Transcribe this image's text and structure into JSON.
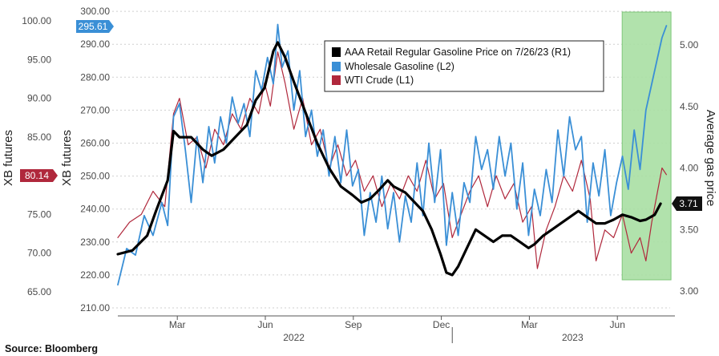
{
  "chart_data": {
    "type": "line",
    "source": "Source: Bloomberg",
    "x_ticks": [
      "Mar",
      "Jun",
      "Sep",
      "Dec",
      "Mar",
      "Jun"
    ],
    "x_years": [
      "2022",
      "2023"
    ],
    "axes": {
      "left_outer": {
        "label": "XB futures",
        "ticks": [
          "65.00",
          "70.00",
          "75.00",
          "80.00",
          "85.00",
          "90.00",
          "95.00",
          "100.00"
        ],
        "range": [
          65,
          100
        ]
      },
      "left_inner": {
        "label": "XB futures",
        "ticks": [
          "210.00",
          "220.00",
          "230.00",
          "240.00",
          "250.00",
          "260.00",
          "270.00",
          "280.00",
          "290.00",
          "300.00"
        ],
        "range": [
          210,
          300
        ]
      },
      "right": {
        "label": "Average gas price",
        "ticks": [
          "3.00",
          "3.50",
          "4.00",
          "4.50",
          "5.00"
        ],
        "range": [
          3.0,
          5.2
        ]
      }
    },
    "badges": {
      "wholesale": "295.61",
      "wti": "80.14",
      "retail": "3.71"
    },
    "highlight": {
      "from_month": 17.0,
      "to_month": 18.5,
      "color": "#a8dfa3"
    },
    "colors": {
      "retail": "#000000",
      "wholesale": "#3a8fd6",
      "wti": "#b0283c",
      "badge_wholesale": "#3a8fd6",
      "badge_wti": "#b0283c",
      "badge_retail": "#111111"
    },
    "series": [
      {
        "name": "AAA Retail Regular Gasoline Price on 7/26/23 (R1)",
        "axis": "right",
        "points": [
          [
            0.0,
            3.3
          ],
          [
            0.5,
            3.33
          ],
          [
            1.0,
            3.45
          ],
          [
            1.3,
            3.65
          ],
          [
            1.7,
            3.9
          ],
          [
            1.9,
            4.3
          ],
          [
            2.1,
            4.25
          ],
          [
            2.5,
            4.25
          ],
          [
            2.9,
            4.15
          ],
          [
            3.2,
            4.1
          ],
          [
            3.6,
            4.15
          ],
          [
            4.0,
            4.25
          ],
          [
            4.4,
            4.35
          ],
          [
            4.7,
            4.55
          ],
          [
            5.0,
            4.65
          ],
          [
            5.3,
            4.95
          ],
          [
            5.45,
            5.02
          ],
          [
            5.7,
            4.9
          ],
          [
            6.0,
            4.7
          ],
          [
            6.4,
            4.45
          ],
          [
            6.8,
            4.2
          ],
          [
            7.2,
            4.0
          ],
          [
            7.6,
            3.85
          ],
          [
            8.0,
            3.78
          ],
          [
            8.3,
            3.72
          ],
          [
            8.6,
            3.75
          ],
          [
            8.9,
            3.82
          ],
          [
            9.2,
            3.9
          ],
          [
            9.4,
            3.85
          ],
          [
            9.8,
            3.8
          ],
          [
            10.0,
            3.75
          ],
          [
            10.4,
            3.65
          ],
          [
            10.7,
            3.5
          ],
          [
            11.0,
            3.3
          ],
          [
            11.2,
            3.15
          ],
          [
            11.4,
            3.13
          ],
          [
            11.6,
            3.2
          ],
          [
            11.9,
            3.35
          ],
          [
            12.2,
            3.5
          ],
          [
            12.5,
            3.45
          ],
          [
            12.8,
            3.4
          ],
          [
            13.1,
            3.45
          ],
          [
            13.4,
            3.45
          ],
          [
            13.7,
            3.4
          ],
          [
            14.0,
            3.35
          ],
          [
            14.2,
            3.38
          ],
          [
            14.5,
            3.45
          ],
          [
            14.8,
            3.5
          ],
          [
            15.1,
            3.55
          ],
          [
            15.4,
            3.6
          ],
          [
            15.7,
            3.65
          ],
          [
            16.0,
            3.6
          ],
          [
            16.3,
            3.55
          ],
          [
            16.6,
            3.55
          ],
          [
            16.9,
            3.58
          ],
          [
            17.2,
            3.62
          ],
          [
            17.5,
            3.6
          ],
          [
            17.8,
            3.57
          ],
          [
            18.0,
            3.58
          ],
          [
            18.3,
            3.62
          ],
          [
            18.5,
            3.71
          ]
        ]
      },
      {
        "name": "Wholesale Gasoline (L2)",
        "axis": "left_inner",
        "points": [
          [
            0.0,
            217
          ],
          [
            0.3,
            228
          ],
          [
            0.6,
            226
          ],
          [
            0.9,
            238
          ],
          [
            1.2,
            232
          ],
          [
            1.5,
            242
          ],
          [
            1.7,
            235
          ],
          [
            1.9,
            268
          ],
          [
            2.1,
            272
          ],
          [
            2.3,
            258
          ],
          [
            2.5,
            242
          ],
          [
            2.7,
            262
          ],
          [
            2.9,
            248
          ],
          [
            3.1,
            265
          ],
          [
            3.3,
            254
          ],
          [
            3.5,
            268
          ],
          [
            3.7,
            260
          ],
          [
            3.9,
            274
          ],
          [
            4.1,
            266
          ],
          [
            4.3,
            272
          ],
          [
            4.5,
            262
          ],
          [
            4.7,
            282
          ],
          [
            4.9,
            276
          ],
          [
            5.1,
            286
          ],
          [
            5.3,
            278
          ],
          [
            5.45,
            296
          ],
          [
            5.6,
            283
          ],
          [
            5.8,
            288
          ],
          [
            6.0,
            270
          ],
          [
            6.2,
            282
          ],
          [
            6.4,
            262
          ],
          [
            6.6,
            270
          ],
          [
            6.8,
            256
          ],
          [
            7.0,
            264
          ],
          [
            7.2,
            250
          ],
          [
            7.4,
            262
          ],
          [
            7.6,
            248
          ],
          [
            7.8,
            264
          ],
          [
            8.0,
            247
          ],
          [
            8.2,
            252
          ],
          [
            8.4,
            232
          ],
          [
            8.6,
            245
          ],
          [
            8.8,
            236
          ],
          [
            9.0,
            250
          ],
          [
            9.2,
            234
          ],
          [
            9.4,
            245
          ],
          [
            9.6,
            230
          ],
          [
            9.8,
            244
          ],
          [
            10.0,
            236
          ],
          [
            10.2,
            254
          ],
          [
            10.4,
            238
          ],
          [
            10.6,
            260
          ],
          [
            10.8,
            242
          ],
          [
            11.0,
            258
          ],
          [
            11.2,
            229
          ],
          [
            11.4,
            245
          ],
          [
            11.6,
            232
          ],
          [
            11.8,
            248
          ],
          [
            12.0,
            242
          ],
          [
            12.2,
            262
          ],
          [
            12.4,
            252
          ],
          [
            12.6,
            258
          ],
          [
            12.8,
            246
          ],
          [
            13.0,
            262
          ],
          [
            13.2,
            250
          ],
          [
            13.4,
            260
          ],
          [
            13.6,
            240
          ],
          [
            13.8,
            254
          ],
          [
            14.0,
            232
          ],
          [
            14.2,
            246
          ],
          [
            14.4,
            238
          ],
          [
            14.6,
            252
          ],
          [
            14.8,
            242
          ],
          [
            15.0,
            264
          ],
          [
            15.2,
            250
          ],
          [
            15.4,
            268
          ],
          [
            15.6,
            258
          ],
          [
            15.8,
            262
          ],
          [
            16.0,
            236
          ],
          [
            16.2,
            254
          ],
          [
            16.4,
            244
          ],
          [
            16.6,
            258
          ],
          [
            16.8,
            238
          ],
          [
            17.0,
            248
          ],
          [
            17.2,
            256
          ],
          [
            17.4,
            246
          ],
          [
            17.6,
            264
          ],
          [
            17.8,
            252
          ],
          [
            18.0,
            270
          ],
          [
            18.2,
            278
          ],
          [
            18.4,
            286
          ],
          [
            18.55,
            292
          ],
          [
            18.7,
            295.61
          ]
        ]
      },
      {
        "name": "WTI Crude (L1)",
        "axis": "left_outer",
        "points": [
          [
            0.0,
            72
          ],
          [
            0.4,
            74
          ],
          [
            0.8,
            75
          ],
          [
            1.2,
            78
          ],
          [
            1.6,
            76
          ],
          [
            1.9,
            88
          ],
          [
            2.1,
            90
          ],
          [
            2.4,
            84
          ],
          [
            2.7,
            85
          ],
          [
            3.0,
            81
          ],
          [
            3.3,
            86
          ],
          [
            3.6,
            84
          ],
          [
            3.9,
            88
          ],
          [
            4.2,
            86
          ],
          [
            4.5,
            90
          ],
          [
            4.8,
            88
          ],
          [
            5.0,
            92
          ],
          [
            5.2,
            89
          ],
          [
            5.45,
            96
          ],
          [
            5.7,
            92
          ],
          [
            6.0,
            86
          ],
          [
            6.3,
            90
          ],
          [
            6.6,
            84
          ],
          [
            6.9,
            86
          ],
          [
            7.2,
            81
          ],
          [
            7.5,
            84
          ],
          [
            7.8,
            80
          ],
          [
            8.1,
            82
          ],
          [
            8.4,
            78
          ],
          [
            8.7,
            80
          ],
          [
            9.0,
            76
          ],
          [
            9.3,
            79
          ],
          [
            9.6,
            77
          ],
          [
            9.9,
            80
          ],
          [
            10.2,
            78
          ],
          [
            10.5,
            82
          ],
          [
            10.8,
            77
          ],
          [
            11.1,
            79
          ],
          [
            11.4,
            72
          ],
          [
            11.7,
            75
          ],
          [
            12.0,
            78
          ],
          [
            12.3,
            80
          ],
          [
            12.6,
            76
          ],
          [
            12.9,
            80
          ],
          [
            13.2,
            77
          ],
          [
            13.5,
            79
          ],
          [
            13.8,
            74
          ],
          [
            14.1,
            76
          ],
          [
            14.3,
            68
          ],
          [
            14.6,
            73
          ],
          [
            14.9,
            76
          ],
          [
            15.2,
            80
          ],
          [
            15.5,
            78
          ],
          [
            15.8,
            82
          ],
          [
            16.1,
            77
          ],
          [
            16.3,
            69
          ],
          [
            16.6,
            73
          ],
          [
            16.9,
            72
          ],
          [
            17.2,
            75
          ],
          [
            17.5,
            70
          ],
          [
            17.8,
            72
          ],
          [
            18.0,
            69
          ],
          [
            18.2,
            74
          ],
          [
            18.4,
            78
          ],
          [
            18.55,
            81
          ],
          [
            18.7,
            80.14
          ]
        ]
      }
    ]
  }
}
